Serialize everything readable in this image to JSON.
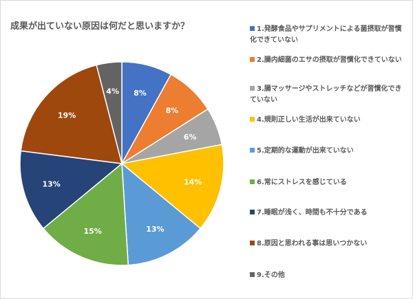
{
  "chart_data": {
    "type": "pie",
    "title": "成果が出ていない原因は何だと思いますか？",
    "categories": [
      "1.発酵食品やサプリメントによる菌摂取が習慣化できていない",
      "2.腸内細菌のエサの摂取が習慣化できていない",
      "3.腸マッサージやストレッチなどが習慣化できていない",
      "4.規則正しい生活が出来ていない",
      "5.定期的な運動が出来ていない",
      "6.常にストレスを感じている",
      "7.睡眠が浅く、時間も不十分である",
      "8.原因と思われる事は思いつかない",
      "9.その他"
    ],
    "values": [
      8,
      8,
      6,
      14,
      13,
      15,
      13,
      19,
      4
    ],
    "labels": [
      "8%",
      "8%",
      "6%",
      "14%",
      "13%",
      "15%",
      "13%",
      "19%",
      "4%"
    ],
    "colors": [
      "#4472c4",
      "#ed7d31",
      "#a5a5a5",
      "#ffc000",
      "#5b9bd5",
      "#70ad47",
      "#264478",
      "#9e480e",
      "#636363"
    ],
    "legend_position": "right"
  }
}
